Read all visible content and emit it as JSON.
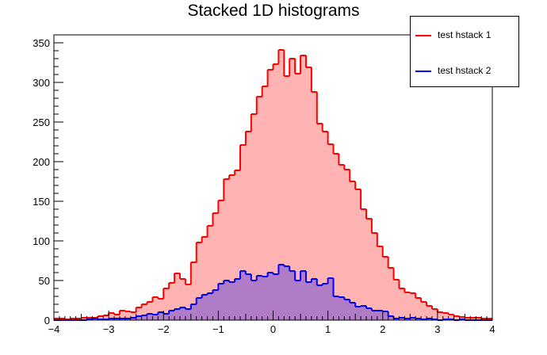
{
  "chart_data": {
    "type": "area",
    "title": "Stacked 1D histograms",
    "xlabel": "",
    "ylabel": "",
    "xlim": [
      -4,
      4
    ],
    "ylim": [
      0,
      360
    ],
    "x_ticks": [
      "−4",
      "−3",
      "−2",
      "−1",
      "0",
      "1",
      "2",
      "3",
      "4"
    ],
    "y_ticks": [
      "0",
      "50",
      "100",
      "150",
      "200",
      "250",
      "300",
      "350"
    ],
    "grid": false,
    "legend_position": "top-right",
    "stacked": true,
    "bin_edges": [
      -4.0,
      -3.9,
      -3.8,
      -3.7,
      -3.6,
      -3.5,
      -3.4,
      -3.3,
      -3.2,
      -3.1,
      -3.0,
      -2.9,
      -2.8,
      -2.7,
      -2.6,
      -2.5,
      -2.4,
      -2.3,
      -2.2,
      -2.1,
      -2.0,
      -1.9,
      -1.8,
      -1.7,
      -1.6,
      -1.5,
      -1.4,
      -1.3,
      -1.2,
      -1.1,
      -1.0,
      -0.9,
      -0.8,
      -0.7,
      -0.6,
      -0.5,
      -0.4,
      -0.3,
      -0.2,
      -0.1,
      0.0,
      0.1,
      0.2,
      0.3,
      0.4,
      0.5,
      0.6,
      0.7,
      0.8,
      0.9,
      1.0,
      1.1,
      1.2,
      1.3,
      1.4,
      1.5,
      1.6,
      1.7,
      1.8,
      1.9,
      2.0,
      2.1,
      2.2,
      2.3,
      2.4,
      2.5,
      2.6,
      2.7,
      2.8,
      2.9,
      3.0,
      3.1,
      3.2,
      3.3,
      3.4,
      3.5,
      3.6,
      3.7,
      3.8,
      3.9,
      4.0
    ],
    "series": [
      {
        "name": "test hstack 1",
        "line_color": "#ff0000",
        "fill_color": "#ffb3b3",
        "stacked_values": [
          2,
          2,
          1,
          2,
          2,
          3,
          3,
          3,
          5,
          6,
          9,
          7,
          12,
          11,
          10,
          16,
          20,
          23,
          29,
          27,
          40,
          47,
          59,
          52,
          45,
          73,
          98,
          105,
          119,
          135,
          151,
          178,
          183,
          189,
          221,
          238,
          260,
          282,
          295,
          316,
          323,
          341,
          308,
          330,
          311,
          334,
          319,
          288,
          248,
          238,
          222,
          210,
          196,
          190,
          175,
          165,
          140,
          128,
          110,
          93,
          80,
          66,
          51,
          40,
          35,
          34,
          28,
          23,
          18,
          14,
          10,
          9,
          7,
          5,
          4,
          3,
          3,
          3,
          2,
          2
        ]
      },
      {
        "name": "test hstack 2",
        "line_color": "#0000ff",
        "fill_color": "#b07cc6",
        "values": [
          0,
          0,
          0,
          0,
          0,
          0,
          1,
          2,
          1,
          1,
          2,
          2,
          2,
          2,
          3,
          5,
          6,
          8,
          7,
          10,
          8,
          12,
          14,
          16,
          14,
          20,
          28,
          32,
          34,
          38,
          46,
          50,
          48,
          52,
          62,
          58,
          50,
          56,
          55,
          60,
          58,
          70,
          68,
          62,
          50,
          62,
          48,
          52,
          44,
          46,
          53,
          30,
          29,
          26,
          22,
          17,
          18,
          15,
          12,
          12,
          11,
          5,
          2,
          3,
          2,
          3,
          2,
          1,
          2,
          1,
          0,
          1,
          1,
          0,
          1,
          0,
          0,
          0,
          0,
          0
        ]
      }
    ]
  }
}
